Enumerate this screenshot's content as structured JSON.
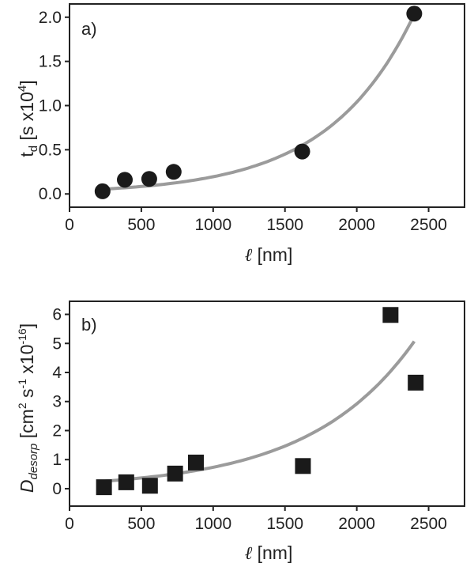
{
  "chart_data": [
    {
      "type": "scatter",
      "panel_label": "a)",
      "xlabel": "ℓ [nm]",
      "ylabel": "t_d [s x10^4]",
      "xlim": [
        0,
        2750
      ],
      "ylim": [
        -0.15,
        2.15
      ],
      "x_ticks": [
        0,
        500,
        1000,
        1500,
        2000,
        2500
      ],
      "y_ticks": [
        0.0,
        0.5,
        1.0,
        1.5,
        2.0
      ],
      "y_tick_labels": [
        "0.0",
        "0.5",
        "1.0",
        "1.5",
        "2.0"
      ],
      "marker": "circle",
      "marker_color": "#1a1a1a",
      "fit_color": "#9b9b9b",
      "series": [
        {
          "x": [
            230,
            385,
            555,
            725,
            1620,
            2400
          ],
          "y": [
            0.03,
            0.16,
            0.17,
            0.25,
            0.48,
            2.04
          ]
        }
      ],
      "fit": {
        "a": 0.0365,
        "b": 0.001675,
        "x_range": [
          250,
          2400
        ]
      }
    },
    {
      "type": "scatter",
      "panel_label": "b)",
      "xlabel": "ℓ [nm]",
      "ylabel": "D_desorp [cm^2 s^-1 x10^-16]",
      "xlim": [
        0,
        2750
      ],
      "ylim": [
        -0.6,
        6.45
      ],
      "x_ticks": [
        0,
        500,
        1000,
        1500,
        2000,
        2500
      ],
      "y_ticks": [
        0,
        1,
        2,
        3,
        4,
        5,
        6
      ],
      "y_tick_labels": [
        "0",
        "1",
        "2",
        "3",
        "4",
        "5",
        "6"
      ],
      "marker": "square",
      "marker_color": "#1a1a1a",
      "fit_color": "#9b9b9b",
      "series": [
        {
          "x": [
            240,
            395,
            560,
            735,
            880,
            1625,
            2235,
            2410
          ],
          "y": [
            0.05,
            0.22,
            0.1,
            0.52,
            0.9,
            0.78,
            5.98,
            3.65
          ]
        }
      ],
      "fit": {
        "a": 0.1857,
        "b": 0.001378,
        "x_range": [
          250,
          2400
        ]
      }
    }
  ]
}
